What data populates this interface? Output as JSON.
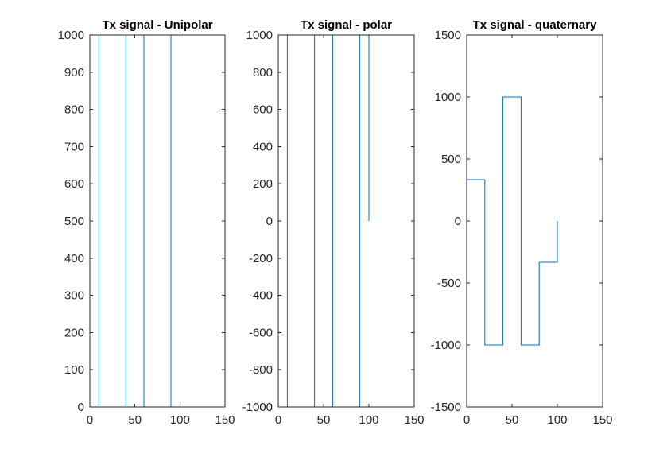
{
  "chart_data": [
    {
      "type": "line",
      "title": "Tx signal - Unipolar",
      "xlim": [
        0,
        150
      ],
      "ylim": [
        0,
        1000
      ],
      "xticks": [
        0,
        50,
        100,
        150
      ],
      "yticks": [
        0,
        100,
        200,
        300,
        400,
        500,
        600,
        700,
        800,
        900,
        1000
      ],
      "series": [
        {
          "x": [
            0,
            10,
            10,
            40,
            40,
            60,
            60,
            90,
            90,
            100
          ],
          "y": [
            1000,
            1000,
            0,
            0,
            1000,
            1000,
            0,
            0,
            1000,
            1000
          ]
        }
      ]
    },
    {
      "type": "line",
      "title": "Tx signal - polar",
      "xlim": [
        0,
        150
      ],
      "ylim": [
        -1000,
        1000
      ],
      "xticks": [
        0,
        50,
        100,
        150
      ],
      "yticks": [
        -1000,
        -800,
        -600,
        -400,
        -200,
        0,
        200,
        400,
        600,
        800,
        1000
      ],
      "series": [
        {
          "x": [
            0,
            10,
            10,
            40,
            40,
            60,
            60,
            90,
            90,
            100,
            100
          ],
          "y": [
            1000,
            1000,
            -1000,
            -1000,
            1000,
            1000,
            -1000,
            -1000,
            1000,
            1000,
            0
          ]
        }
      ]
    },
    {
      "type": "line",
      "title": "Tx signal - quaternary",
      "xlim": [
        0,
        150
      ],
      "ylim": [
        -1500,
        1500
      ],
      "xticks": [
        0,
        50,
        100,
        150
      ],
      "yticks": [
        -1500,
        -1000,
        -500,
        0,
        500,
        1000,
        1500
      ],
      "series": [
        {
          "x": [
            0,
            20,
            20,
            40,
            40,
            60,
            60,
            80,
            80,
            100,
            100
          ],
          "y": [
            333,
            333,
            -1000,
            -1000,
            1000,
            1000,
            -1000,
            -1000,
            -333,
            -333,
            0
          ]
        }
      ]
    }
  ],
  "colors": {
    "series": "#0072bd",
    "axis": "#262626"
  }
}
